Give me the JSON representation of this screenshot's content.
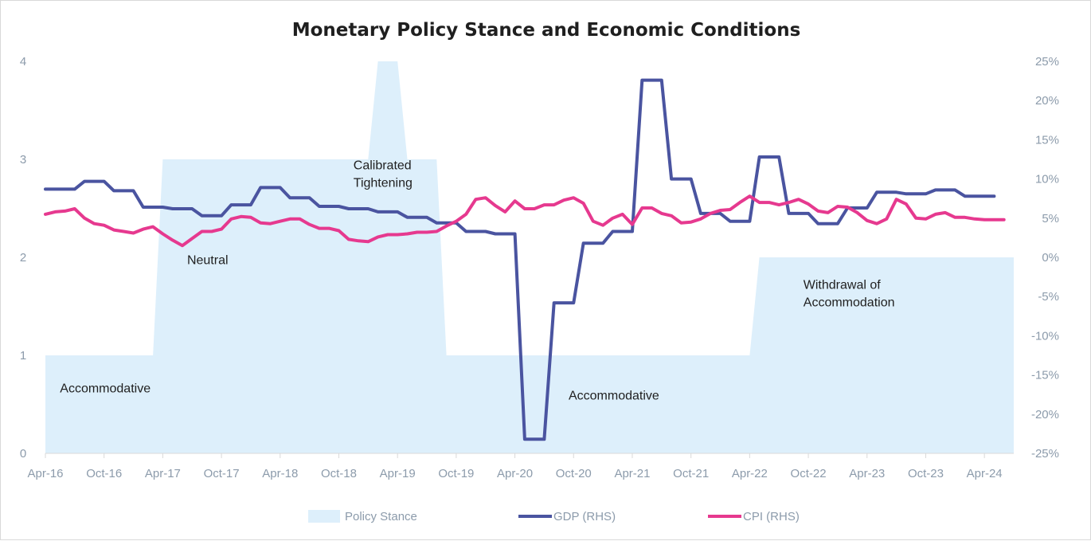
{
  "chart_data": {
    "type": "line",
    "title": "Monetary Policy Stance and Economic Conditions",
    "left_axis": {
      "min": 0,
      "max": 4,
      "ticks": [
        "0",
        "1",
        "2",
        "3",
        "4"
      ]
    },
    "right_axis": {
      "min": -25,
      "max": 25,
      "ticks": [
        "25%",
        "20%",
        "15%",
        "10%",
        "5%",
        "0%",
        "-5%",
        "-10%",
        "-15%",
        "-20%",
        "-25%"
      ]
    },
    "x_tick_labels": [
      "Apr-16",
      "Oct-16",
      "Apr-17",
      "Oct-17",
      "Apr-18",
      "Oct-18",
      "Apr-19",
      "Oct-19",
      "Apr-20",
      "Oct-20",
      "Apr-21",
      "Oct-21",
      "Apr-22",
      "Oct-22",
      "Apr-23",
      "Oct-23",
      "Apr-24"
    ],
    "x_start": "2016-04",
    "colors": {
      "policy": "#ddeffb",
      "gdp": "#4a54a0",
      "cpi": "#e6398f",
      "tick": "#8c9bab"
    },
    "series": [
      {
        "name": "Policy Stance",
        "axis": "left",
        "kind": "area",
        "points": [
          [
            "2016-04",
            1
          ],
          [
            "2017-03",
            1
          ],
          [
            "2017-04",
            3
          ],
          [
            "2019-01",
            3
          ],
          [
            "2019-02",
            4
          ],
          [
            "2019-04",
            4
          ],
          [
            "2019-05",
            3
          ],
          [
            "2019-08",
            3
          ],
          [
            "2019-09",
            1
          ],
          [
            "2022-04",
            1
          ],
          [
            "2022-05",
            2
          ],
          [
            "2024-07",
            2
          ]
        ]
      },
      {
        "name": "GDP (RHS)",
        "axis": "right",
        "kind": "line",
        "points": [
          [
            "2016-04",
            8.7
          ],
          [
            "2016-07",
            8.7
          ],
          [
            "2016-08",
            9.7
          ],
          [
            "2016-10",
            9.7
          ],
          [
            "2016-11",
            8.5
          ],
          [
            "2017-01",
            8.5
          ],
          [
            "2017-02",
            6.4
          ],
          [
            "2017-04",
            6.4
          ],
          [
            "2017-05",
            6.2
          ],
          [
            "2017-07",
            6.2
          ],
          [
            "2017-08",
            5.3
          ],
          [
            "2017-10",
            5.3
          ],
          [
            "2017-11",
            6.7
          ],
          [
            "2018-01",
            6.7
          ],
          [
            "2018-02",
            8.9
          ],
          [
            "2018-04",
            8.9
          ],
          [
            "2018-05",
            7.6
          ],
          [
            "2018-07",
            7.6
          ],
          [
            "2018-08",
            6.5
          ],
          [
            "2018-10",
            6.5
          ],
          [
            "2018-11",
            6.2
          ],
          [
            "2019-01",
            6.2
          ],
          [
            "2019-02",
            5.8
          ],
          [
            "2019-04",
            5.8
          ],
          [
            "2019-05",
            5.1
          ],
          [
            "2019-07",
            5.1
          ],
          [
            "2019-08",
            4.4
          ],
          [
            "2019-10",
            4.4
          ],
          [
            "2019-11",
            3.3
          ],
          [
            "2020-01",
            3.3
          ],
          [
            "2020-02",
            3.0
          ],
          [
            "2020-04",
            3.0
          ],
          [
            "2020-05",
            -23.2
          ],
          [
            "2020-07",
            -23.2
          ],
          [
            "2020-08",
            -5.8
          ],
          [
            "2020-10",
            -5.8
          ],
          [
            "2020-11",
            1.8
          ],
          [
            "2021-01",
            1.8
          ],
          [
            "2021-02",
            3.3
          ],
          [
            "2021-04",
            3.3
          ],
          [
            "2021-05",
            22.6
          ],
          [
            "2021-07",
            22.6
          ],
          [
            "2021-08",
            10.0
          ],
          [
            "2021-10",
            10.0
          ],
          [
            "2021-11",
            5.6
          ],
          [
            "2022-01",
            5.6
          ],
          [
            "2022-02",
            4.6
          ],
          [
            "2022-04",
            4.6
          ],
          [
            "2022-05",
            12.8
          ],
          [
            "2022-07",
            12.8
          ],
          [
            "2022-08",
            5.6
          ],
          [
            "2022-10",
            5.6
          ],
          [
            "2022-11",
            4.3
          ],
          [
            "2023-01",
            4.3
          ],
          [
            "2023-02",
            6.3
          ],
          [
            "2023-04",
            6.3
          ],
          [
            "2023-05",
            8.3
          ],
          [
            "2023-07",
            8.3
          ],
          [
            "2023-08",
            8.1
          ],
          [
            "2023-10",
            8.1
          ],
          [
            "2023-11",
            8.6
          ],
          [
            "2024-01",
            8.6
          ],
          [
            "2024-02",
            7.8
          ],
          [
            "2024-05",
            7.8
          ]
        ]
      },
      {
        "name": "CPI (RHS)",
        "axis": "right",
        "kind": "line",
        "points": [
          [
            "2016-04",
            5.5
          ],
          [
            "2016-05",
            5.8
          ],
          [
            "2016-06",
            5.9
          ],
          [
            "2016-07",
            6.2
          ],
          [
            "2016-08",
            5.0
          ],
          [
            "2016-09",
            4.3
          ],
          [
            "2016-10",
            4.1
          ],
          [
            "2016-11",
            3.5
          ],
          [
            "2016-12",
            3.3
          ],
          [
            "2017-01",
            3.1
          ],
          [
            "2017-02",
            3.6
          ],
          [
            "2017-03",
            3.9
          ],
          [
            "2017-04",
            3.0
          ],
          [
            "2017-05",
            2.2
          ],
          [
            "2017-06",
            1.5
          ],
          [
            "2017-07",
            2.4
          ],
          [
            "2017-08",
            3.3
          ],
          [
            "2017-09",
            3.3
          ],
          [
            "2017-10",
            3.6
          ],
          [
            "2017-11",
            4.9
          ],
          [
            "2017-12",
            5.2
          ],
          [
            "2018-01",
            5.1
          ],
          [
            "2018-02",
            4.4
          ],
          [
            "2018-03",
            4.3
          ],
          [
            "2018-04",
            4.6
          ],
          [
            "2018-05",
            4.9
          ],
          [
            "2018-06",
            4.9
          ],
          [
            "2018-07",
            4.2
          ],
          [
            "2018-08",
            3.7
          ],
          [
            "2018-09",
            3.7
          ],
          [
            "2018-10",
            3.4
          ],
          [
            "2018-11",
            2.3
          ],
          [
            "2018-12",
            2.1
          ],
          [
            "2019-01",
            2.0
          ],
          [
            "2019-02",
            2.6
          ],
          [
            "2019-03",
            2.9
          ],
          [
            "2019-04",
            2.9
          ],
          [
            "2019-05",
            3.0
          ],
          [
            "2019-06",
            3.2
          ],
          [
            "2019-07",
            3.2
          ],
          [
            "2019-08",
            3.3
          ],
          [
            "2019-09",
            4.0
          ],
          [
            "2019-10",
            4.6
          ],
          [
            "2019-11",
            5.5
          ],
          [
            "2019-12",
            7.4
          ],
          [
            "2020-01",
            7.6
          ],
          [
            "2020-02",
            6.6
          ],
          [
            "2020-03",
            5.8
          ],
          [
            "2020-04",
            7.2
          ],
          [
            "2020-05",
            6.2
          ],
          [
            "2020-06",
            6.2
          ],
          [
            "2020-07",
            6.7
          ],
          [
            "2020-08",
            6.7
          ],
          [
            "2020-09",
            7.3
          ],
          [
            "2020-10",
            7.6
          ],
          [
            "2020-11",
            6.9
          ],
          [
            "2020-12",
            4.6
          ],
          [
            "2021-01",
            4.1
          ],
          [
            "2021-02",
            5.0
          ],
          [
            "2021-03",
            5.5
          ],
          [
            "2021-04",
            4.2
          ],
          [
            "2021-05",
            6.3
          ],
          [
            "2021-06",
            6.3
          ],
          [
            "2021-07",
            5.6
          ],
          [
            "2021-08",
            5.3
          ],
          [
            "2021-09",
            4.4
          ],
          [
            "2021-10",
            4.5
          ],
          [
            "2021-11",
            4.9
          ],
          [
            "2021-12",
            5.6
          ],
          [
            "2022-01",
            6.0
          ],
          [
            "2022-02",
            6.1
          ],
          [
            "2022-03",
            7.0
          ],
          [
            "2022-04",
            7.8
          ],
          [
            "2022-05",
            7.0
          ],
          [
            "2022-06",
            7.0
          ],
          [
            "2022-07",
            6.7
          ],
          [
            "2022-08",
            7.0
          ],
          [
            "2022-09",
            7.4
          ],
          [
            "2022-10",
            6.8
          ],
          [
            "2022-11",
            5.9
          ],
          [
            "2022-12",
            5.7
          ],
          [
            "2023-01",
            6.5
          ],
          [
            "2023-02",
            6.4
          ],
          [
            "2023-03",
            5.7
          ],
          [
            "2023-04",
            4.7
          ],
          [
            "2023-05",
            4.3
          ],
          [
            "2023-06",
            4.9
          ],
          [
            "2023-07",
            7.4
          ],
          [
            "2023-08",
            6.8
          ],
          [
            "2023-09",
            5.0
          ],
          [
            "2023-10",
            4.9
          ],
          [
            "2023-11",
            5.5
          ],
          [
            "2023-12",
            5.7
          ],
          [
            "2024-01",
            5.1
          ],
          [
            "2024-02",
            5.1
          ],
          [
            "2024-03",
            4.9
          ],
          [
            "2024-04",
            4.8
          ],
          [
            "2024-05",
            4.8
          ],
          [
            "2024-06",
            4.8
          ]
        ]
      }
    ],
    "annotations": [
      {
        "lines": [
          "Accommodative"
        ],
        "at": [
          "2016-05",
          0.62
        ]
      },
      {
        "lines": [
          "Neutral"
        ],
        "at": [
          "2017-06",
          1.93
        ]
      },
      {
        "lines": [
          "Calibrated",
          "Tightening"
        ],
        "at": [
          "2018-11",
          2.9
        ]
      },
      {
        "lines": [
          "Accommodative"
        ],
        "at": [
          "2020-09",
          0.55
        ]
      },
      {
        "lines": [
          "Withdrawal of",
          "Accommodation"
        ],
        "at": [
          "2022-09",
          1.68
        ]
      }
    ],
    "legend": [
      "Policy Stance",
      "GDP (RHS)",
      "CPI (RHS)"
    ],
    "legend_position": "bottom"
  }
}
